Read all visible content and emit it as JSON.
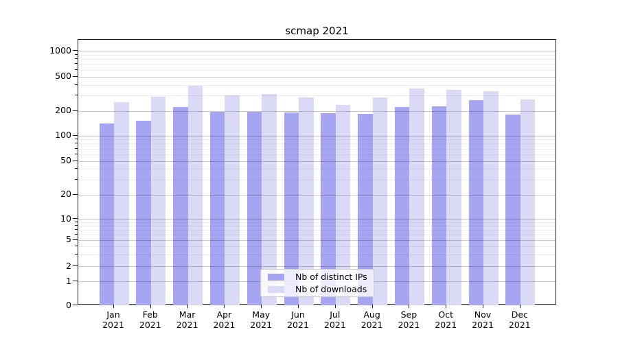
{
  "chart_data": {
    "type": "bar",
    "title": "scmap 2021",
    "categories": [
      "Jan 2021",
      "Feb 2021",
      "Mar 2021",
      "Apr 2021",
      "May 2021",
      "Jun 2021",
      "Jul 2021",
      "Aug 2021",
      "Sep 2021",
      "Oct 2021",
      "Nov 2021",
      "Dec 2021"
    ],
    "series": [
      {
        "name": "Nb of distinct IPs",
        "color": "#a5a5f2",
        "values": [
          141,
          152,
          222,
          193,
          195,
          192,
          186,
          185,
          220,
          227,
          265,
          181
        ]
      },
      {
        "name": "Nb of downloads",
        "color": "#dadaf7",
        "values": [
          250,
          290,
          390,
          300,
          315,
          285,
          235,
          285,
          360,
          350,
          335,
          272
        ]
      }
    ],
    "yscale": "symlog",
    "yticks": [
      0,
      1,
      2,
      5,
      10,
      20,
      50,
      100,
      200,
      500,
      1000
    ],
    "ylim": [
      0,
      1000
    ],
    "grid": true,
    "legend_position": "lower center",
    "colors": {
      "major_grid": "#c7c7c7",
      "minor_grid": "#ececec",
      "spine": "#1a1a1a"
    }
  }
}
